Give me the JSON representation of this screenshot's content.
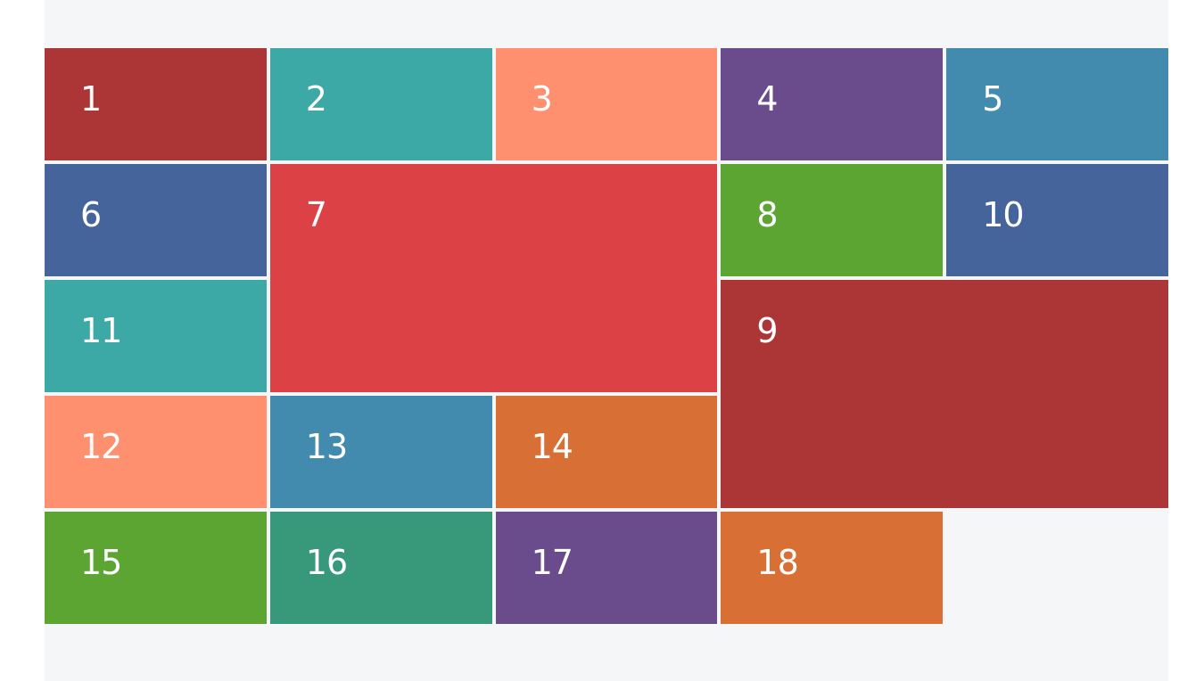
{
  "colors": {
    "panel_background": "#f5f6f8",
    "tile_text": "#ffffff"
  },
  "tiles": [
    {
      "label": "1",
      "color": "#ac3536"
    },
    {
      "label": "2",
      "color": "#3ca9a6"
    },
    {
      "label": "3",
      "color": "#fe906f"
    },
    {
      "label": "4",
      "color": "#6a4b8c"
    },
    {
      "label": "5",
      "color": "#428bae"
    },
    {
      "label": "6",
      "color": "#45649b"
    },
    {
      "label": "7",
      "color": "#dc4145"
    },
    {
      "label": "8",
      "color": "#5ca533"
    },
    {
      "label": "10",
      "color": "#45649b"
    },
    {
      "label": "11",
      "color": "#3ca9a6"
    },
    {
      "label": "9",
      "color": "#ac3536"
    },
    {
      "label": "12",
      "color": "#fe906f"
    },
    {
      "label": "13",
      "color": "#428bae"
    },
    {
      "label": "14",
      "color": "#d87036"
    },
    {
      "label": "15",
      "color": "#5ca533"
    },
    {
      "label": "16",
      "color": "#37997a"
    },
    {
      "label": "17",
      "color": "#6a4b8c"
    },
    {
      "label": "18",
      "color": "#d87036"
    }
  ]
}
